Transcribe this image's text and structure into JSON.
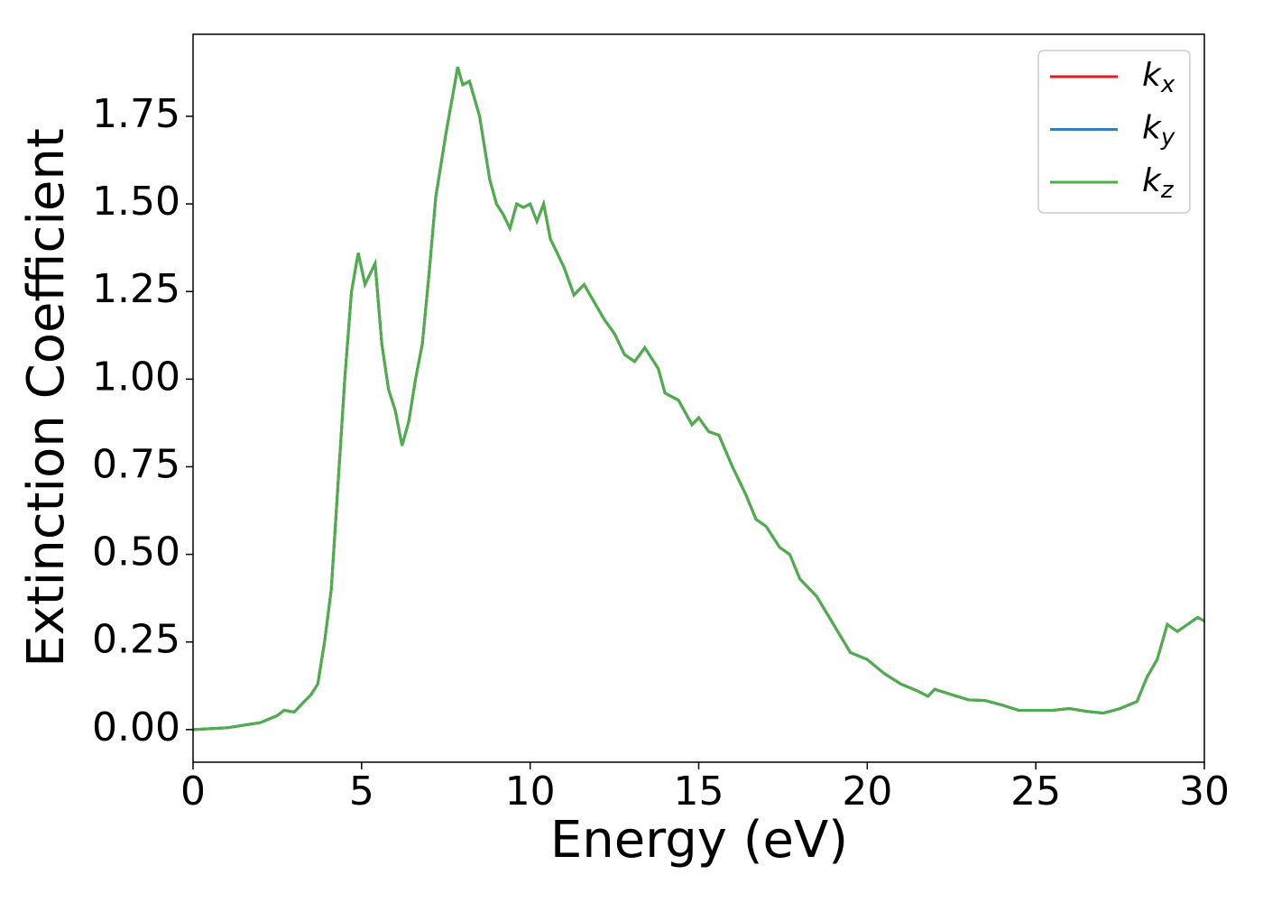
{
  "chart_data": {
    "type": "line",
    "xlabel": "Energy (eV)",
    "ylabel": "Extinction Coefficient",
    "x": [
      0,
      1,
      2,
      2.5,
      2.7,
      3,
      3.3,
      3.5,
      3.7,
      3.9,
      4.1,
      4.3,
      4.5,
      4.7,
      4.9,
      5.1,
      5.4,
      5.6,
      5.8,
      6.0,
      6.2,
      6.4,
      6.6,
      6.8,
      7.0,
      7.2,
      7.5,
      7.85,
      8.0,
      8.2,
      8.5,
      8.8,
      9.0,
      9.2,
      9.4,
      9.6,
      9.8,
      10.0,
      10.2,
      10.4,
      10.6,
      11.0,
      11.3,
      11.6,
      11.9,
      12.2,
      12.5,
      12.8,
      13.1,
      13.4,
      13.8,
      14.0,
      14.4,
      14.8,
      15.0,
      15.3,
      15.6,
      16.0,
      16.4,
      16.7,
      17.0,
      17.4,
      17.7,
      18.0,
      18.5,
      19.0,
      19.5,
      20.0,
      20.5,
      21.0,
      21.5,
      21.8,
      22.0,
      22.5,
      23.0,
      23.5,
      24.0,
      24.5,
      25.0,
      25.5,
      26.0,
      26.5,
      27.0,
      27.5,
      28.0,
      28.3,
      28.6,
      28.9,
      29.2,
      29.5,
      29.8,
      30.0
    ],
    "series": [
      {
        "name": "kx",
        "color": "#e41a1c",
        "values": [
          0.0,
          0.005,
          0.02,
          0.04,
          0.055,
          0.05,
          0.08,
          0.1,
          0.13,
          0.25,
          0.4,
          0.7,
          1.0,
          1.25,
          1.36,
          1.27,
          1.33,
          1.1,
          0.97,
          0.91,
          0.81,
          0.88,
          1.0,
          1.1,
          1.3,
          1.52,
          1.7,
          1.89,
          1.84,
          1.85,
          1.75,
          1.57,
          1.5,
          1.47,
          1.43,
          1.5,
          1.49,
          1.5,
          1.45,
          1.5,
          1.4,
          1.32,
          1.24,
          1.27,
          1.22,
          1.17,
          1.13,
          1.07,
          1.05,
          1.09,
          1.03,
          0.96,
          0.94,
          0.87,
          0.89,
          0.85,
          0.84,
          0.75,
          0.67,
          0.6,
          0.58,
          0.52,
          0.5,
          0.43,
          0.38,
          0.3,
          0.22,
          0.2,
          0.16,
          0.13,
          0.11,
          0.095,
          0.115,
          0.1,
          0.085,
          0.083,
          0.07,
          0.055,
          0.055,
          0.055,
          0.06,
          0.052,
          0.047,
          0.06,
          0.08,
          0.15,
          0.2,
          0.3,
          0.28,
          0.3,
          0.32,
          0.31
        ]
      },
      {
        "name": "ky",
        "color": "#377eb8",
        "values": [
          0.0,
          0.005,
          0.02,
          0.04,
          0.055,
          0.05,
          0.08,
          0.1,
          0.13,
          0.25,
          0.4,
          0.7,
          1.0,
          1.25,
          1.36,
          1.27,
          1.33,
          1.1,
          0.97,
          0.91,
          0.81,
          0.88,
          1.0,
          1.1,
          1.3,
          1.52,
          1.7,
          1.89,
          1.84,
          1.85,
          1.75,
          1.57,
          1.5,
          1.47,
          1.43,
          1.5,
          1.49,
          1.5,
          1.45,
          1.5,
          1.4,
          1.32,
          1.24,
          1.27,
          1.22,
          1.17,
          1.13,
          1.07,
          1.05,
          1.09,
          1.03,
          0.96,
          0.94,
          0.87,
          0.89,
          0.85,
          0.84,
          0.75,
          0.67,
          0.6,
          0.58,
          0.52,
          0.5,
          0.43,
          0.38,
          0.3,
          0.22,
          0.2,
          0.16,
          0.13,
          0.11,
          0.095,
          0.115,
          0.1,
          0.085,
          0.083,
          0.07,
          0.055,
          0.055,
          0.055,
          0.06,
          0.052,
          0.047,
          0.06,
          0.08,
          0.15,
          0.2,
          0.3,
          0.28,
          0.3,
          0.32,
          0.31
        ]
      },
      {
        "name": "kz",
        "color": "#4daf4a",
        "values": [
          0.0,
          0.005,
          0.02,
          0.04,
          0.055,
          0.05,
          0.08,
          0.1,
          0.13,
          0.25,
          0.4,
          0.7,
          1.0,
          1.25,
          1.36,
          1.27,
          1.33,
          1.1,
          0.97,
          0.91,
          0.81,
          0.88,
          1.0,
          1.1,
          1.3,
          1.52,
          1.7,
          1.89,
          1.84,
          1.85,
          1.75,
          1.57,
          1.5,
          1.47,
          1.43,
          1.5,
          1.49,
          1.5,
          1.45,
          1.5,
          1.4,
          1.32,
          1.24,
          1.27,
          1.22,
          1.17,
          1.13,
          1.07,
          1.05,
          1.09,
          1.03,
          0.96,
          0.94,
          0.87,
          0.89,
          0.85,
          0.84,
          0.75,
          0.67,
          0.6,
          0.58,
          0.52,
          0.5,
          0.43,
          0.38,
          0.3,
          0.22,
          0.2,
          0.16,
          0.13,
          0.11,
          0.095,
          0.115,
          0.1,
          0.085,
          0.083,
          0.07,
          0.055,
          0.055,
          0.055,
          0.06,
          0.052,
          0.047,
          0.06,
          0.08,
          0.15,
          0.2,
          0.3,
          0.28,
          0.3,
          0.32,
          0.31
        ]
      }
    ],
    "xlim": [
      0,
      30
    ],
    "xticks": [
      0,
      5,
      10,
      15,
      20,
      25,
      30
    ],
    "ylim": [
      -0.093,
      1.984
    ],
    "yticks": [
      {
        "value": 0,
        "label": "0.00"
      },
      {
        "value": 0.25,
        "label": "0.25"
      },
      {
        "value": 0.5,
        "label": "0.50"
      },
      {
        "value": 0.75,
        "label": "0.75"
      },
      {
        "value": 1.0,
        "label": "1.00"
      },
      {
        "value": 1.25,
        "label": "1.25"
      },
      {
        "value": 1.5,
        "label": "1.50"
      },
      {
        "value": 1.75,
        "label": "1.75"
      }
    ],
    "grid": false,
    "legend": "upper right"
  }
}
